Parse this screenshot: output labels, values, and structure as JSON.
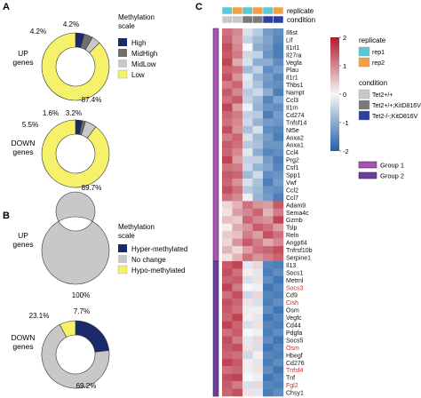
{
  "panels": {
    "a": "A",
    "b": "B",
    "c": "C"
  },
  "chart_data": [
    {
      "type": "pie",
      "id": "A-up",
      "title": "UP genes",
      "legend_title": "Methylation scale",
      "categories": [
        "High",
        "MidHigh",
        "MidLow",
        "Low"
      ],
      "values": [
        4.2,
        4.2,
        4.2,
        87.4
      ],
      "labels": [
        "4.2%",
        "4.2%",
        "",
        "87.4%"
      ],
      "colors": [
        "#1b2a6b",
        "#6e6e6e",
        "#c8c8c8",
        "#f5f16a"
      ]
    },
    {
      "type": "pie",
      "id": "A-down",
      "title": "DOWN genes",
      "categories": [
        "High",
        "MidHigh",
        "MidLow",
        "Low"
      ],
      "values": [
        3.2,
        1.6,
        5.5,
        89.7
      ],
      "labels": [
        "3.2%",
        "1.6%",
        "5.5%",
        "89.7%"
      ],
      "colors": [
        "#1b2a6b",
        "#6e6e6e",
        "#c8c8c8",
        "#f5f16a"
      ]
    },
    {
      "type": "pie",
      "id": "B-up",
      "title": "UP genes",
      "legend_title": "Methylation scale",
      "categories": [
        "Hyper-methylated",
        "No change",
        "Hypo-methylated"
      ],
      "values": [
        0,
        100,
        0
      ],
      "labels": [
        "",
        "100%",
        ""
      ],
      "colors": [
        "#1b2a6b",
        "#c8c8c8",
        "#f5f16a"
      ]
    },
    {
      "type": "pie",
      "id": "B-down",
      "title": "DOWN genes",
      "categories": [
        "Hyper-methylated",
        "No change",
        "Hypo-methylated"
      ],
      "values": [
        23.1,
        69.2,
        7.7
      ],
      "labels": [
        "23.1%",
        "69.2%",
        "7.7%"
      ],
      "colors": [
        "#1b2a6b",
        "#c8c8c8",
        "#f5f16a"
      ]
    },
    {
      "type": "heatmap",
      "id": "C",
      "annotation_rows": [
        "replicate",
        "condition"
      ],
      "columns": [
        {
          "replicate": "rep1",
          "condition": "Tet2+/+"
        },
        {
          "replicate": "rep2",
          "condition": "Tet2+/+"
        },
        {
          "replicate": "rep1",
          "condition": "Tet2+/+;KitD816V"
        },
        {
          "replicate": "rep2",
          "condition": "Tet2+/+;KitD816V"
        },
        {
          "replicate": "rep1",
          "condition": "Tet2-/-;KitD816V"
        },
        {
          "replicate": "rep2",
          "condition": "Tet2-/-;KitD816V"
        }
      ],
      "rows": [
        "Il6st",
        "Lif",
        "Il1rl1",
        "Il27ra",
        "Vegfa",
        "Plau",
        "Il1r1",
        "Thbs1",
        "Nampt",
        "Ccl3",
        "Il1rn",
        "Cd274",
        "Tnfsf14",
        "Nt5e",
        "Anxa2",
        "Anxa1",
        "Ccl4",
        "Prg2",
        "Csf1",
        "Spp1",
        "Vwf",
        "Ccl2",
        "Ccl7",
        "Adam9",
        "Sema4c",
        "Gzmb",
        "Tslp",
        "Reln",
        "Angptl4",
        "Tnfrsf10b",
        "Serpine1",
        "Il13",
        "Socs1",
        "Metrnl",
        "Socs3",
        "Cd9",
        "Cish",
        "Osm",
        "Vegfc",
        "Cd44",
        "Pdgfa",
        "Socs5",
        "Osm",
        "Hbegf",
        "Cd276",
        "Tnfsf4",
        "Tnf",
        "Fgl2",
        "Chsy1"
      ],
      "red_labels": [
        34,
        36,
        42,
        45,
        47
      ],
      "groups": [
        {
          "name": "Group 1",
          "start": 0,
          "end": 30,
          "color": "#a855b5"
        },
        {
          "name": "Group 2",
          "start": 31,
          "end": 48,
          "color": "#6b3fa0"
        }
      ],
      "scale": {
        "min": -2,
        "max": 2,
        "ticks": [
          2,
          1,
          0,
          -1,
          -2
        ]
      },
      "values": [
        [
          1.2,
          1.0,
          -0.3,
          -0.6,
          -1.2,
          -1.4
        ],
        [
          1.3,
          0.9,
          -0.5,
          -0.8,
          -1.1,
          -1.5
        ],
        [
          1.5,
          1.0,
          0.0,
          -1.0,
          -1.2,
          -1.6
        ],
        [
          1.4,
          1.1,
          -0.4,
          -0.5,
          -1.3,
          -1.6
        ],
        [
          1.6,
          0.7,
          -0.3,
          -1.0,
          -1.0,
          -1.4
        ],
        [
          1.3,
          1.2,
          -0.8,
          -0.5,
          -1.4,
          -1.2
        ],
        [
          1.5,
          0.9,
          -0.2,
          -0.9,
          -1.2,
          -1.5
        ],
        [
          1.1,
          1.3,
          -0.3,
          -0.7,
          -1.3,
          -1.4
        ],
        [
          1.4,
          1.0,
          -0.6,
          -0.4,
          -1.0,
          -1.6
        ],
        [
          1.2,
          1.4,
          -0.5,
          -0.8,
          -1.5,
          -1.1
        ],
        [
          1.6,
          0.8,
          -0.1,
          -0.9,
          -1.3,
          -1.4
        ],
        [
          1.3,
          1.1,
          -0.5,
          -0.6,
          -1.6,
          -1.2
        ],
        [
          1.2,
          1.0,
          -0.4,
          -0.9,
          -1.2,
          -1.3
        ],
        [
          1.5,
          0.9,
          -0.7,
          -0.3,
          -1.4,
          -1.5
        ],
        [
          1.1,
          1.3,
          -0.3,
          -0.8,
          -1.2,
          -1.6
        ],
        [
          1.4,
          1.2,
          -0.6,
          -0.7,
          -1.3,
          -1.3
        ],
        [
          1.3,
          1.0,
          -0.2,
          -1.0,
          -1.5,
          -1.4
        ],
        [
          1.6,
          0.8,
          -0.5,
          -0.5,
          -1.2,
          -1.6
        ],
        [
          1.2,
          1.1,
          -0.4,
          -0.9,
          -1.1,
          -1.5
        ],
        [
          1.4,
          1.3,
          -0.8,
          -0.4,
          -1.4,
          -1.3
        ],
        [
          1.3,
          0.9,
          -0.3,
          -0.7,
          -1.6,
          -1.2
        ],
        [
          1.5,
          1.2,
          -0.6,
          -0.8,
          -1.3,
          -1.4
        ],
        [
          1.2,
          1.0,
          -0.1,
          -0.9,
          -1.2,
          -1.6
        ],
        [
          0.3,
          0.6,
          1.2,
          0.9,
          0.8,
          1.4
        ],
        [
          0.2,
          0.8,
          1.0,
          1.3,
          0.6,
          1.1
        ],
        [
          0.5,
          0.4,
          1.3,
          1.0,
          0.9,
          1.6
        ],
        [
          0.1,
          0.7,
          0.9,
          1.4,
          1.2,
          0.8
        ],
        [
          0.4,
          0.5,
          1.1,
          0.8,
          1.5,
          1.2
        ],
        [
          0.3,
          0.9,
          1.4,
          1.1,
          0.7,
          1.0
        ],
        [
          0.6,
          0.3,
          0.8,
          1.2,
          1.3,
          1.5
        ],
        [
          0.2,
          0.6,
          1.2,
          0.9,
          1.1,
          1.3
        ],
        [
          1.4,
          1.6,
          -0.2,
          0.3,
          -1.5,
          -1.6
        ],
        [
          1.5,
          1.2,
          0.1,
          -0.2,
          -1.6,
          -1.4
        ],
        [
          1.3,
          1.4,
          -0.3,
          0.2,
          -1.4,
          -1.7
        ],
        [
          1.6,
          1.1,
          0.0,
          -0.1,
          -1.7,
          -1.5
        ],
        [
          1.2,
          1.5,
          -0.4,
          0.3,
          -1.5,
          -1.6
        ],
        [
          1.5,
          1.3,
          0.2,
          -0.3,
          -1.6,
          -1.4
        ],
        [
          1.4,
          1.2,
          -0.1,
          0.1,
          -1.4,
          -1.7
        ],
        [
          1.3,
          1.6,
          0.1,
          -0.2,
          -1.7,
          -1.5
        ],
        [
          1.6,
          1.3,
          -0.3,
          0.2,
          -1.5,
          -1.6
        ],
        [
          1.2,
          1.4,
          0.0,
          -0.1,
          -1.6,
          -1.4
        ],
        [
          1.5,
          1.1,
          -0.2,
          0.3,
          -1.4,
          -1.7
        ],
        [
          1.4,
          1.5,
          0.2,
          -0.3,
          -1.7,
          -1.5
        ],
        [
          1.3,
          1.2,
          -0.4,
          0.1,
          -1.5,
          -1.6
        ],
        [
          1.6,
          1.4,
          0.1,
          -0.2,
          -1.6,
          -1.4
        ],
        [
          1.2,
          1.3,
          -0.1,
          0.2,
          -1.4,
          -1.7
        ],
        [
          1.5,
          1.6,
          0.0,
          -0.1,
          -1.7,
          -1.5
        ],
        [
          1.4,
          1.1,
          -0.3,
          0.3,
          -1.5,
          -1.6
        ],
        [
          1.3,
          1.5,
          0.2,
          -0.2,
          -1.6,
          -1.4
        ]
      ],
      "legend": {
        "replicate": {
          "title": "replicate",
          "items": [
            {
              "label": "rep1",
              "color": "#5bc8d6"
            },
            {
              "label": "rep2",
              "color": "#f2a046"
            }
          ]
        },
        "condition": {
          "title": "condition",
          "items": [
            {
              "label": "Tet2+/+",
              "color": "#c8c8c8"
            },
            {
              "label": "Tet2+/+;KitD816V",
              "color": "#7a7a7a"
            },
            {
              "label": "Tet2-/-;KitD816V",
              "color": "#2b3f9e"
            }
          ]
        },
        "groups": [
          {
            "label": "Group 1",
            "color": "#a855b5"
          },
          {
            "label": "Group 2",
            "color": "#6b3fa0"
          }
        ]
      }
    }
  ]
}
